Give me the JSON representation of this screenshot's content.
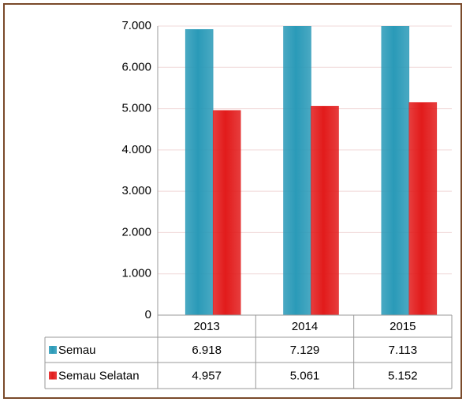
{
  "chart_data": {
    "type": "bar",
    "categories": [
      "2013",
      "2014",
      "2015"
    ],
    "series": [
      {
        "name": "Semau",
        "color": "#2a9ab8",
        "values": [
          6918,
          7129,
          7113
        ],
        "value_labels": [
          "6.918",
          "7.129",
          "7.113"
        ]
      },
      {
        "name": "Semau Selatan",
        "color": "#e21b1b",
        "values": [
          4957,
          5061,
          5152
        ],
        "value_labels": [
          "4.957",
          "5.061",
          "5.152"
        ]
      }
    ],
    "ylim": [
      0,
      7000
    ],
    "yticks": [
      0,
      {
        "value": 1000,
        "label": "1.000"
      },
      {
        "value": 2000,
        "label": "2.000"
      },
      {
        "value": 3000,
        "label": "3.000"
      },
      {
        "value": 4000,
        "label": "4.000"
      },
      {
        "value": 5000,
        "label": "5.000"
      },
      {
        "value": 6000,
        "label": "6.000"
      },
      {
        "value": 7000,
        "label": "7.000"
      }
    ],
    "grid": true,
    "data_table": true
  }
}
